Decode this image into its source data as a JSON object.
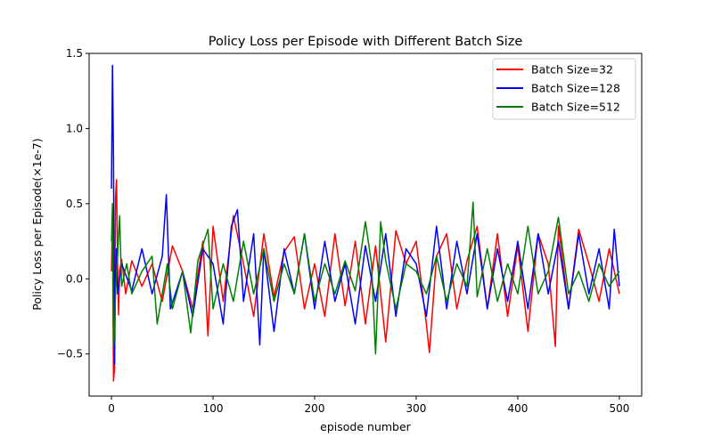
{
  "chart_data": {
    "type": "line",
    "title": "Policy Loss per Episode with Different Batch Size",
    "xlabel": "episode number",
    "ylabel": "Policy Loss per Episode(×1e-7)",
    "xlim": [
      -22,
      522
    ],
    "ylim": [
      -0.78,
      1.5
    ],
    "xticks": [
      0,
      100,
      200,
      300,
      400,
      500
    ],
    "yticks": [
      -0.5,
      0.0,
      0.5,
      1.0,
      1.5
    ],
    "xtick_labels": [
      "0",
      "100",
      "200",
      "300",
      "400",
      "500"
    ],
    "ytick_labels": [
      "−0.5",
      "0.0",
      "0.5",
      "1.0",
      "1.5"
    ],
    "grid": false,
    "legend_position": "top-right",
    "series": [
      {
        "name": "Batch Size=32",
        "color": "#ff0000",
        "x": [
          0,
          1,
          2,
          3,
          4,
          5,
          6,
          7,
          8,
          10,
          14,
          20,
          30,
          40,
          50,
          60,
          70,
          80,
          90,
          95,
          100,
          110,
          120,
          130,
          140,
          150,
          160,
          170,
          180,
          190,
          200,
          210,
          220,
          230,
          240,
          250,
          260,
          270,
          280,
          290,
          300,
          310,
          313,
          320,
          330,
          340,
          350,
          360,
          370,
          380,
          390,
          400,
          410,
          420,
          430,
          437,
          440,
          450,
          460,
          470,
          480,
          490,
          500
        ],
        "values": [
          0.05,
          0.4,
          -0.68,
          -0.6,
          0.55,
          0.66,
          0.1,
          -0.24,
          0.05,
          0.13,
          -0.1,
          0.12,
          -0.05,
          0.1,
          -0.15,
          0.22,
          0.05,
          -0.2,
          0.25,
          -0.38,
          0.35,
          -0.15,
          0.42,
          0.1,
          -0.25,
          0.3,
          -0.12,
          0.18,
          0.28,
          -0.2,
          0.1,
          -0.25,
          0.3,
          -0.18,
          0.25,
          -0.3,
          0.22,
          -0.42,
          0.32,
          0.1,
          0.25,
          -0.3,
          -0.49,
          0.15,
          0.3,
          -0.2,
          0.12,
          0.35,
          -0.2,
          0.3,
          -0.25,
          0.22,
          -0.35,
          0.3,
          0.1,
          -0.45,
          0.35,
          -0.2,
          0.33,
          0.1,
          -0.15,
          0.2,
          -0.1
        ]
      },
      {
        "name": "Batch Size=128",
        "color": "#0000ff",
        "x": [
          0,
          1,
          2,
          3,
          4,
          5,
          6,
          10,
          20,
          30,
          40,
          50,
          54,
          58,
          70,
          80,
          90,
          100,
          110,
          118,
          124,
          130,
          140,
          146,
          150,
          160,
          170,
          180,
          190,
          200,
          210,
          220,
          230,
          240,
          250,
          260,
          270,
          280,
          290,
          300,
          310,
          320,
          330,
          340,
          350,
          360,
          370,
          380,
          390,
          400,
          410,
          420,
          430,
          440,
          450,
          460,
          470,
          480,
          490,
          495,
          500
        ],
        "values": [
          0.6,
          1.42,
          0.8,
          -0.57,
          0.05,
          0.2,
          -0.1,
          0.1,
          -0.08,
          0.2,
          -0.1,
          0.15,
          0.56,
          -0.2,
          0.05,
          -0.25,
          0.2,
          0.1,
          -0.3,
          0.35,
          0.46,
          -0.15,
          0.3,
          -0.44,
          0.2,
          -0.35,
          0.2,
          -0.1,
          0.3,
          -0.2,
          0.25,
          -0.15,
          0.1,
          -0.3,
          0.22,
          -0.15,
          0.3,
          -0.25,
          0.2,
          0.1,
          -0.25,
          0.35,
          -0.2,
          0.25,
          -0.1,
          0.3,
          -0.2,
          0.2,
          -0.15,
          0.25,
          -0.2,
          0.3,
          -0.1,
          0.25,
          -0.2,
          0.3,
          -0.1,
          0.2,
          -0.2,
          0.33,
          -0.05
        ]
      },
      {
        "name": "Batch Size=512",
        "color": "#008000",
        "x": [
          0,
          1,
          2,
          3,
          4,
          6,
          8,
          10,
          15,
          20,
          30,
          40,
          45,
          55,
          60,
          70,
          78,
          85,
          95,
          100,
          110,
          120,
          130,
          140,
          150,
          160,
          170,
          180,
          190,
          200,
          210,
          220,
          230,
          240,
          250,
          256,
          260,
          265,
          270,
          280,
          290,
          300,
          310,
          320,
          330,
          340,
          350,
          356,
          360,
          370,
          380,
          390,
          400,
          410,
          420,
          430,
          440,
          450,
          460,
          470,
          480,
          490,
          500
        ],
        "values": [
          0.25,
          0.5,
          -0.45,
          -0.35,
          -0.1,
          0.15,
          0.42,
          -0.05,
          0.1,
          -0.1,
          0.05,
          0.15,
          -0.3,
          0.1,
          -0.2,
          0.05,
          -0.36,
          0.12,
          0.33,
          -0.2,
          0.1,
          -0.15,
          0.25,
          -0.1,
          0.2,
          -0.15,
          0.1,
          -0.1,
          0.3,
          -0.15,
          0.1,
          -0.1,
          0.12,
          -0.08,
          0.38,
          0.1,
          -0.5,
          0.38,
          0.12,
          -0.2,
          0.1,
          0.05,
          -0.1,
          0.15,
          -0.15,
          0.1,
          -0.05,
          0.51,
          -0.12,
          0.2,
          -0.15,
          0.1,
          -0.1,
          0.35,
          -0.1,
          0.05,
          0.41,
          -0.1,
          0.05,
          -0.15,
          0.1,
          -0.05,
          0.05
        ]
      }
    ]
  }
}
